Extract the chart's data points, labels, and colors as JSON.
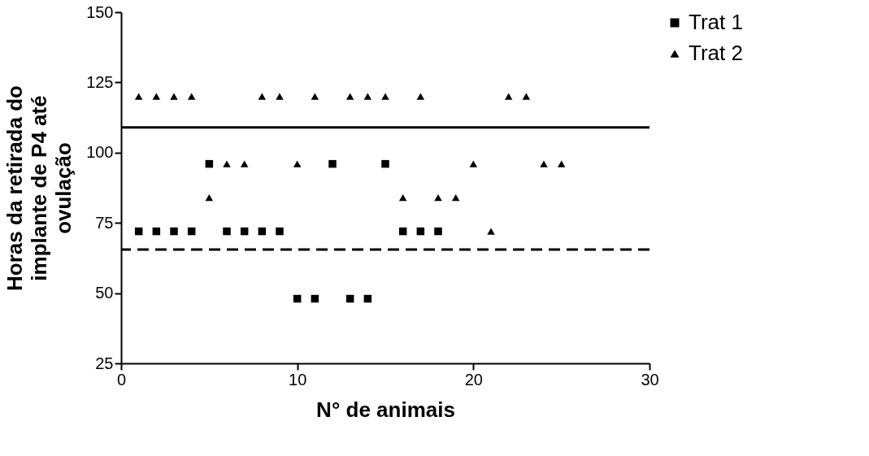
{
  "chart_data": {
    "type": "scatter",
    "xlabel": "N° de animais",
    "ylabel": "Horas da retirada do\nimplante de P4 até\novulação",
    "xlim": [
      0,
      30
    ],
    "xticks": [
      0,
      10,
      20,
      30
    ],
    "ylim": [
      25,
      150
    ],
    "yticks": [
      25,
      50,
      75,
      100,
      125,
      150
    ],
    "grid": false,
    "legend": "top right",
    "series": [
      {
        "name": "Trat 1",
        "type": "scatter",
        "marker": "square",
        "color": "#000000",
        "x": [
          1,
          2,
          3,
          4,
          5,
          6,
          7,
          8,
          9,
          10,
          11,
          12,
          13,
          14,
          15,
          16,
          17,
          18
        ],
        "values": [
          72,
          72,
          72,
          72,
          96,
          72,
          72,
          72,
          72,
          48,
          48,
          96,
          48,
          48,
          96,
          72,
          72,
          72
        ]
      },
      {
        "name": "Trat 2",
        "type": "scatter",
        "marker": "triangle",
        "color": "#000000",
        "x": [
          1,
          2,
          3,
          4,
          5,
          6,
          7,
          8,
          9,
          10,
          11,
          13,
          14,
          15,
          16,
          17,
          18,
          19,
          20,
          21,
          22,
          23,
          24,
          25
        ],
        "values": [
          120,
          120,
          120,
          120,
          84,
          96,
          96,
          120,
          120,
          96,
          120,
          120,
          120,
          120,
          84,
          120,
          84,
          84,
          96,
          72,
          120,
          120,
          96,
          96
        ]
      }
    ],
    "ref_lines": [
      {
        "axis": "y",
        "value": 109,
        "line_style": "solid",
        "color": "#000000"
      },
      {
        "axis": "y",
        "value": 65.5,
        "line_style": "dashed",
        "color": "#000000"
      }
    ]
  }
}
